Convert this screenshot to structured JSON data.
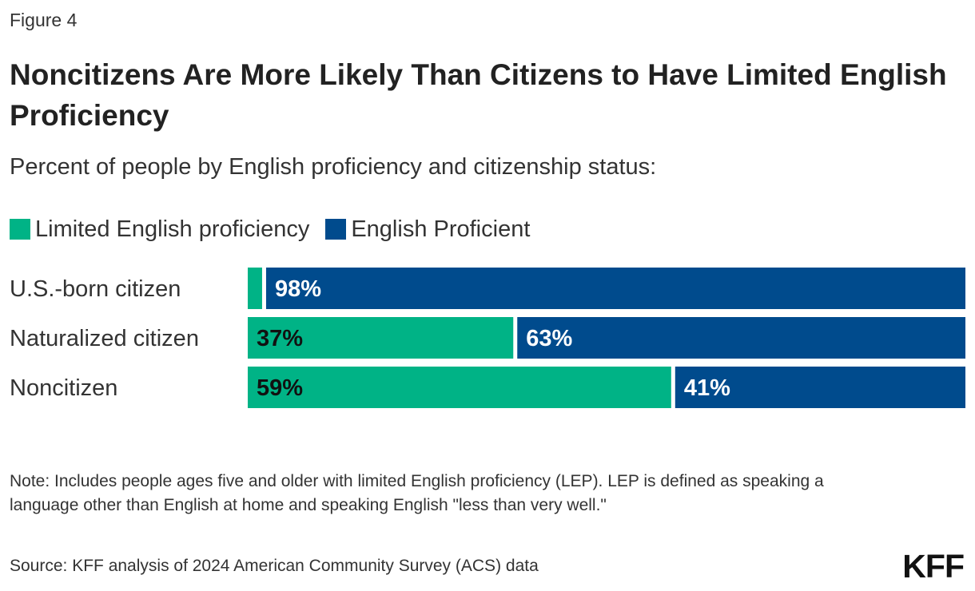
{
  "figure_label": "Figure 4",
  "chart_data": {
    "type": "bar",
    "orientation": "horizontal",
    "stacked": true,
    "title": "Noncitizens Are More Likely Than Citizens to Have Limited English Proficiency",
    "subtitle": "Percent of people by English proficiency and citizenship status:",
    "categories": [
      "U.S.-born citizen",
      "Naturalized citizen",
      "Noncitizen"
    ],
    "series": [
      {
        "name": "Limited English proficiency",
        "color": "#00b386",
        "values": [
          2,
          37,
          59
        ],
        "labels": [
          "",
          "37%",
          "59%"
        ],
        "label_color": "#111111"
      },
      {
        "name": "English Proficient",
        "color": "#004b8d",
        "values": [
          98,
          63,
          41
        ],
        "labels": [
          "98%",
          "63%",
          "41%"
        ],
        "label_color": "#ffffff"
      }
    ],
    "xlim": [
      0,
      100
    ],
    "legend": "top-left",
    "grid": false
  },
  "note": "Note: Includes people ages five and older with limited English proficiency (LEP). LEP is defined as speaking a language other than English at home and speaking English \"less than very well.\"",
  "source": "Source: KFF analysis of 2024 American Community Survey (ACS) data",
  "logo": "KFF"
}
